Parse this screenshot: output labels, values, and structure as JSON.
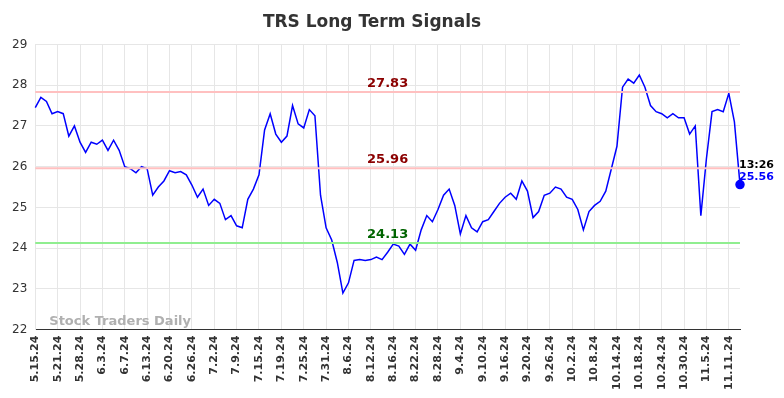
{
  "chart_data": {
    "type": "line",
    "title": "TRS Long Term Signals",
    "watermark": "Stock Traders Daily",
    "categories": [
      "5.15.24",
      null,
      null,
      null,
      "5.21.24",
      null,
      null,
      null,
      "5.28.24",
      null,
      null,
      null,
      "6.3.24",
      null,
      null,
      null,
      "6.7.24",
      null,
      null,
      null,
      "6.13.24",
      null,
      null,
      null,
      "6.20.24",
      null,
      null,
      null,
      "6.26.24",
      null,
      null,
      null,
      "7.2.24",
      null,
      null,
      null,
      "7.9.24",
      null,
      null,
      null,
      "7.15.24",
      null,
      null,
      null,
      "7.19.24",
      null,
      null,
      null,
      "7.25.24",
      null,
      null,
      null,
      "7.31.24",
      null,
      null,
      null,
      "8.6.24",
      null,
      null,
      null,
      "8.12.24",
      null,
      null,
      null,
      "8.16.24",
      null,
      null,
      null,
      "8.22.24",
      null,
      null,
      null,
      "8.28.24",
      null,
      null,
      null,
      "9.4.24",
      null,
      null,
      null,
      "9.10.24",
      null,
      null,
      null,
      "9.16.24",
      null,
      null,
      null,
      "9.20.24",
      null,
      null,
      null,
      "9.26.24",
      null,
      null,
      null,
      "10.2.24",
      null,
      null,
      null,
      "10.8.24",
      null,
      null,
      null,
      "10.14.24",
      null,
      null,
      null,
      "10.18.24",
      null,
      null,
      null,
      "10.24.24",
      null,
      null,
      null,
      "10.30.24",
      null,
      null,
      null,
      "11.5.24",
      null,
      null,
      null,
      "11.11.24",
      null,
      null
    ],
    "values": [
      27.45,
      27.7,
      27.6,
      27.3,
      27.35,
      27.3,
      26.75,
      27.0,
      26.6,
      26.35,
      26.6,
      26.55,
      26.65,
      26.4,
      26.65,
      26.4,
      26.0,
      25.95,
      25.85,
      26.0,
      25.95,
      25.3,
      25.5,
      25.65,
      25.9,
      25.85,
      25.88,
      25.8,
      25.55,
      25.25,
      25.45,
      25.05,
      25.2,
      25.1,
      24.7,
      24.8,
      24.55,
      24.5,
      25.2,
      25.45,
      25.8,
      26.9,
      27.3,
      26.8,
      26.6,
      26.75,
      27.5,
      27.05,
      26.95,
      27.4,
      27.25,
      25.3,
      24.5,
      24.2,
      23.65,
      22.9,
      23.15,
      23.7,
      23.72,
      23.7,
      23.72,
      23.78,
      23.72,
      23.9,
      24.1,
      24.05,
      23.85,
      24.1,
      23.95,
      24.45,
      24.8,
      24.65,
      24.95,
      25.3,
      25.45,
      25.05,
      24.35,
      24.8,
      24.5,
      24.4,
      24.65,
      24.7,
      24.9,
      25.1,
      25.25,
      25.35,
      25.2,
      25.65,
      25.4,
      24.75,
      24.9,
      25.3,
      25.35,
      25.5,
      25.45,
      25.25,
      25.2,
      24.95,
      24.45,
      24.9,
      25.05,
      25.15,
      25.4,
      25.95,
      26.5,
      27.95,
      28.15,
      28.05,
      28.25,
      27.95,
      27.5,
      27.35,
      27.3,
      27.2,
      27.3,
      27.2,
      27.2,
      26.8,
      27.0,
      24.8,
      26.2,
      27.35,
      27.4,
      27.35,
      27.8,
      27.1,
      25.56
    ],
    "color": "#0000ff",
    "ylim": [
      22,
      29
    ],
    "yticks": [
      22,
      23,
      24,
      25,
      26,
      27,
      28,
      29
    ],
    "grid": true,
    "reference_lines": [
      {
        "value": 27.83,
        "color": "#ffc0c0",
        "label_color": "#8b0000"
      },
      {
        "value": 25.96,
        "color": "#ffc0c0",
        "label_color": "#8b0000"
      },
      {
        "value": 24.13,
        "color": "#90ee90",
        "label_color": "#006400"
      }
    ],
    "last_point_label": "13:26"
  }
}
